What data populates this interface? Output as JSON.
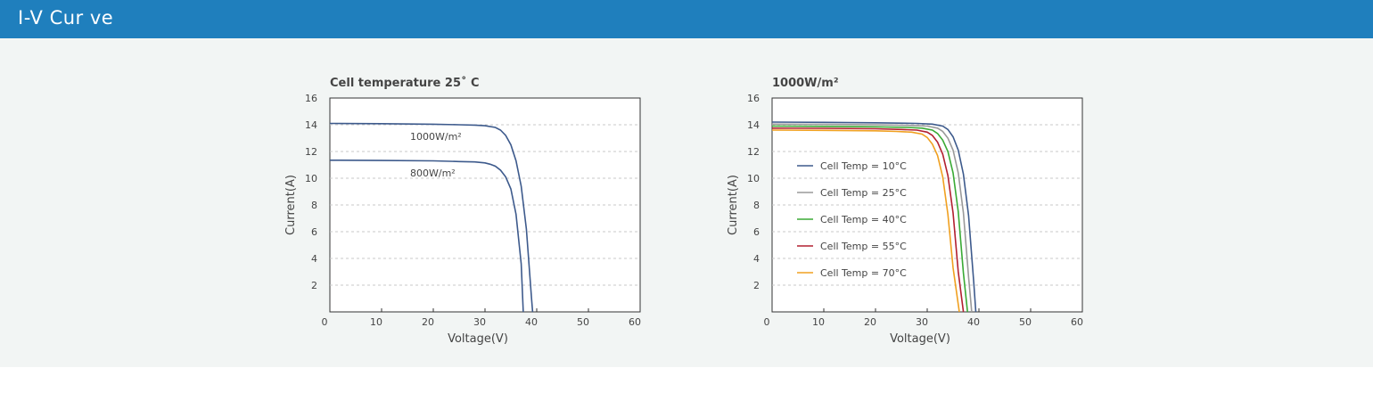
{
  "header": {
    "title": "I-V Cur ve"
  },
  "colors": {
    "header_bg": "#1f7fbd",
    "panel_bg": "#f2f5f4"
  },
  "chart_data": [
    {
      "type": "line",
      "title": "Cell temperature 25˚ C",
      "xlabel": "Voltage(V)",
      "ylabel": "Current(A)",
      "xlim": [
        0,
        60
      ],
      "ylim": [
        0,
        16
      ],
      "xticks": [
        "0",
        "10",
        "20",
        "30",
        "40",
        "50",
        "60"
      ],
      "yticks": [
        "2",
        "4",
        "6",
        "8",
        "10",
        "12",
        "14",
        "16"
      ],
      "grid": "horizontal-dashed",
      "legend": "inline",
      "series": [
        {
          "name": "1000W/m²",
          "color": "#3d5a8c",
          "x": [
            0,
            10,
            20,
            25,
            28,
            30,
            32,
            33,
            34,
            35,
            36,
            37,
            38,
            39,
            39.2
          ],
          "y": [
            14.1,
            14.08,
            14.04,
            14.0,
            13.97,
            13.93,
            13.8,
            13.6,
            13.2,
            12.5,
            11.3,
            9.4,
            6.2,
            1.0,
            0.0
          ]
        },
        {
          "name": "800W/m²",
          "color": "#3d5a8c",
          "x": [
            0,
            10,
            20,
            25,
            28,
            30,
            31,
            32,
            33,
            34,
            35,
            36,
            37,
            37.4
          ],
          "y": [
            11.35,
            11.33,
            11.3,
            11.25,
            11.22,
            11.15,
            11.05,
            10.9,
            10.6,
            10.1,
            9.2,
            7.3,
            3.6,
            0.0
          ]
        }
      ]
    },
    {
      "type": "line",
      "title": "1000W/m²",
      "xlabel": "Voltage(V)",
      "ylabel": "Current(A)",
      "xlim": [
        0,
        60
      ],
      "ylim": [
        0,
        16
      ],
      "xticks": [
        "0",
        "10",
        "20",
        "30",
        "40",
        "50",
        "60"
      ],
      "yticks": [
        "2",
        "4",
        "6",
        "8",
        "10",
        "12",
        "14",
        "16"
      ],
      "grid": "horizontal-dashed",
      "legend": "left",
      "series": [
        {
          "name": "Cell Temp = 10°C",
          "color": "#3d5a8c",
          "x": [
            0,
            10,
            20,
            28,
            31,
            33,
            34,
            35,
            36,
            37,
            38,
            39,
            39.4
          ],
          "y": [
            14.2,
            14.18,
            14.15,
            14.1,
            14.05,
            13.9,
            13.65,
            13.1,
            12.1,
            10.3,
            7.2,
            2.2,
            0.0
          ]
        },
        {
          "name": "Cell Temp = 25°C",
          "color": "#9a9a9a",
          "x": [
            0,
            10,
            20,
            27,
            30,
            32,
            33,
            34,
            35,
            36,
            37,
            38,
            38.6
          ],
          "y": [
            14.05,
            14.03,
            14.0,
            13.95,
            13.9,
            13.75,
            13.5,
            13.0,
            12.1,
            10.4,
            7.4,
            2.6,
            0.0
          ]
        },
        {
          "name": "Cell Temp = 40°C",
          "color": "#3aaa35",
          "x": [
            0,
            10,
            20,
            26,
            29,
            31,
            32,
            33,
            34,
            35,
            36,
            37,
            37.8
          ],
          "y": [
            13.9,
            13.88,
            13.85,
            13.8,
            13.75,
            13.6,
            13.35,
            12.85,
            12.0,
            10.4,
            7.5,
            2.9,
            0.0
          ]
        },
        {
          "name": "Cell Temp = 55°C",
          "color": "#b22030",
          "x": [
            0,
            10,
            20,
            25,
            28,
            30,
            31,
            32,
            33,
            34,
            35,
            36,
            37
          ],
          "y": [
            13.75,
            13.73,
            13.7,
            13.65,
            13.6,
            13.45,
            13.2,
            12.7,
            11.8,
            10.2,
            7.4,
            3.0,
            0.0
          ]
        },
        {
          "name": "Cell Temp = 70°C",
          "color": "#f0a020",
          "x": [
            0,
            10,
            20,
            24,
            27,
            29,
            30,
            31,
            32,
            33,
            34,
            35,
            36.2
          ],
          "y": [
            13.6,
            13.58,
            13.55,
            13.5,
            13.45,
            13.3,
            13.05,
            12.55,
            11.7,
            10.1,
            7.3,
            3.3,
            0.0
          ]
        }
      ]
    }
  ]
}
